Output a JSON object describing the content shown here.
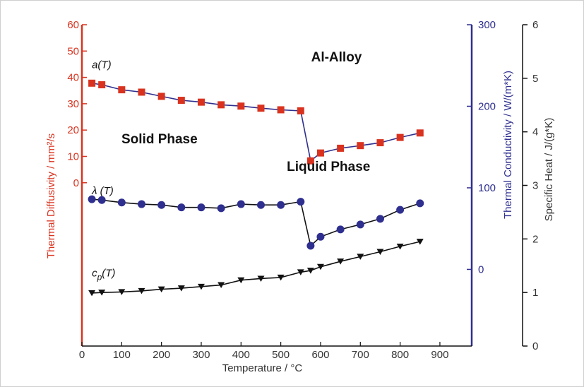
{
  "chart_data": {
    "type": "line",
    "x_label": "Temperature / °C",
    "x_ticks": [
      0,
      100,
      200,
      300,
      400,
      500,
      600,
      700,
      800,
      900
    ],
    "xlim": [
      0,
      980
    ],
    "axes": {
      "diffusivity": {
        "label": "Thermal Diffusivity / mm²/s",
        "color": "#d9331f",
        "ylim": [
          -62,
          60
        ],
        "ticks": [
          0,
          10,
          20,
          30,
          40,
          50,
          60
        ]
      },
      "conductivity": {
        "label": "Thermal Conductivity / W/(m*K)",
        "color": "#2e2f8f",
        "ylim": [
          -94,
          300
        ],
        "ticks": [
          0,
          100,
          200,
          300
        ]
      },
      "specific_heat": {
        "label": "Specific Heat / J/(g*K)",
        "color": "#111111",
        "ylim": [
          0,
          6
        ],
        "ticks": [
          0,
          1,
          2,
          3,
          4,
          5,
          6
        ]
      }
    },
    "series": [
      {
        "name": "a(T)",
        "axis": "diffusivity",
        "marker": "square",
        "marker_color": "#d9331f",
        "line_color": "#2e2f8f",
        "x": [
          25,
          50,
          100,
          150,
          200,
          250,
          300,
          350,
          400,
          450,
          500,
          550,
          575,
          600,
          650,
          700,
          750,
          800,
          850
        ],
        "y": [
          37.8,
          37.2,
          35.3,
          34.4,
          32.8,
          31.3,
          30.6,
          29.6,
          29.1,
          28.3,
          27.7,
          27.3,
          8.3,
          11.3,
          13.1,
          14.1,
          15.2,
          17.2,
          18.9
        ]
      },
      {
        "name": "λ (T)",
        "axis": "conductivity",
        "marker": "circle",
        "marker_color": "#2e2f8f",
        "line_color": "#111111",
        "x": [
          25,
          50,
          100,
          150,
          200,
          250,
          300,
          350,
          400,
          450,
          500,
          550,
          575,
          600,
          650,
          700,
          750,
          800,
          850
        ],
        "y": [
          86,
          85,
          82,
          80,
          79,
          76,
          76,
          75,
          80,
          79,
          79,
          83,
          29,
          40,
          49,
          55,
          62,
          73,
          81
        ]
      },
      {
        "name": "cp(T)",
        "axis": "specific_heat",
        "marker": "triangle-down",
        "marker_color": "#111111",
        "line_color": "#111111",
        "x": [
          25,
          50,
          100,
          150,
          200,
          250,
          300,
          350,
          400,
          450,
          500,
          550,
          575,
          600,
          650,
          700,
          750,
          800,
          850
        ],
        "y": [
          0.99,
          1.0,
          1.01,
          1.03,
          1.06,
          1.08,
          1.11,
          1.14,
          1.23,
          1.26,
          1.28,
          1.38,
          1.41,
          1.48,
          1.58,
          1.67,
          1.76,
          1.86,
          1.95
        ]
      }
    ],
    "annotations": [
      {
        "text": "Al-Alloy",
        "x": 640,
        "y": 46,
        "axis": "diffusivity"
      },
      {
        "text": "Solid Phase",
        "x": 195,
        "y": 15,
        "axis": "diffusivity"
      },
      {
        "text": "Liquid Phase",
        "x": 620,
        "y": 4.5,
        "axis": "diffusivity"
      },
      {
        "text": "a(T)",
        "x": 25,
        "y": 43.5,
        "axis": "diffusivity",
        "style": "curve-label"
      },
      {
        "text": "λ (T)",
        "x": 25,
        "y": 92,
        "axis": "conductivity",
        "style": "curve-label"
      },
      {
        "text": "cp(T)",
        "x": 25,
        "y": 1.3,
        "axis": "specific_heat",
        "style": "curve-label"
      }
    ]
  }
}
